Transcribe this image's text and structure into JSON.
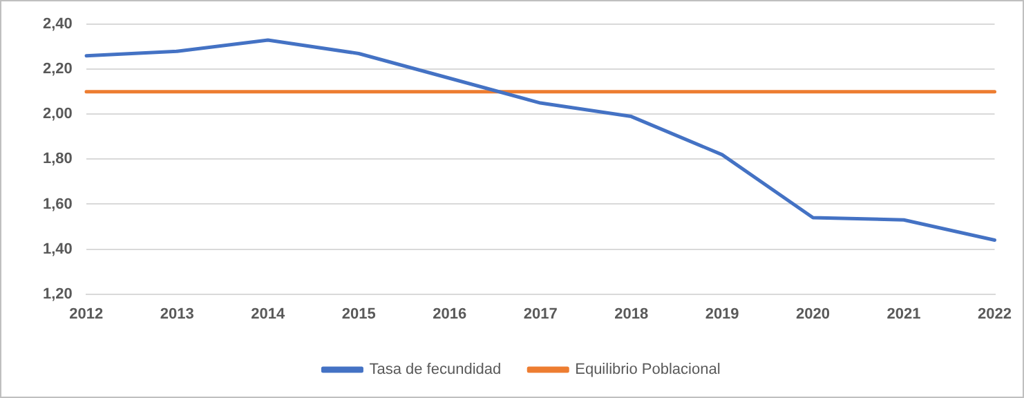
{
  "chart_data": {
    "type": "line",
    "categories": [
      "2012",
      "2013",
      "2014",
      "2015",
      "2016",
      "2017",
      "2018",
      "2019",
      "2020",
      "2021",
      "2022"
    ],
    "series": [
      {
        "name": "Tasa de fecundidad",
        "color": "#4472c4",
        "values": [
          2.26,
          2.28,
          2.33,
          2.27,
          2.16,
          2.05,
          1.99,
          1.82,
          1.54,
          1.53,
          1.44
        ]
      },
      {
        "name": "Equilibrio Poblacional",
        "color": "#ed7d31",
        "values": [
          2.1,
          2.1,
          2.1,
          2.1,
          2.1,
          2.1,
          2.1,
          2.1,
          2.1,
          2.1,
          2.1
        ]
      }
    ],
    "ylim": [
      1.2,
      2.4
    ],
    "yticks": [
      {
        "value": 1.2,
        "label": "1,20"
      },
      {
        "value": 1.4,
        "label": "1,40"
      },
      {
        "value": 1.6,
        "label": "1,60"
      },
      {
        "value": 1.8,
        "label": "1,80"
      },
      {
        "value": 2.0,
        "label": "2,00"
      },
      {
        "value": 2.2,
        "label": "2,20"
      },
      {
        "value": 2.4,
        "label": "2,40"
      }
    ],
    "grid": "y",
    "legend": "bottom",
    "marker": "none",
    "line_style": "solid"
  }
}
